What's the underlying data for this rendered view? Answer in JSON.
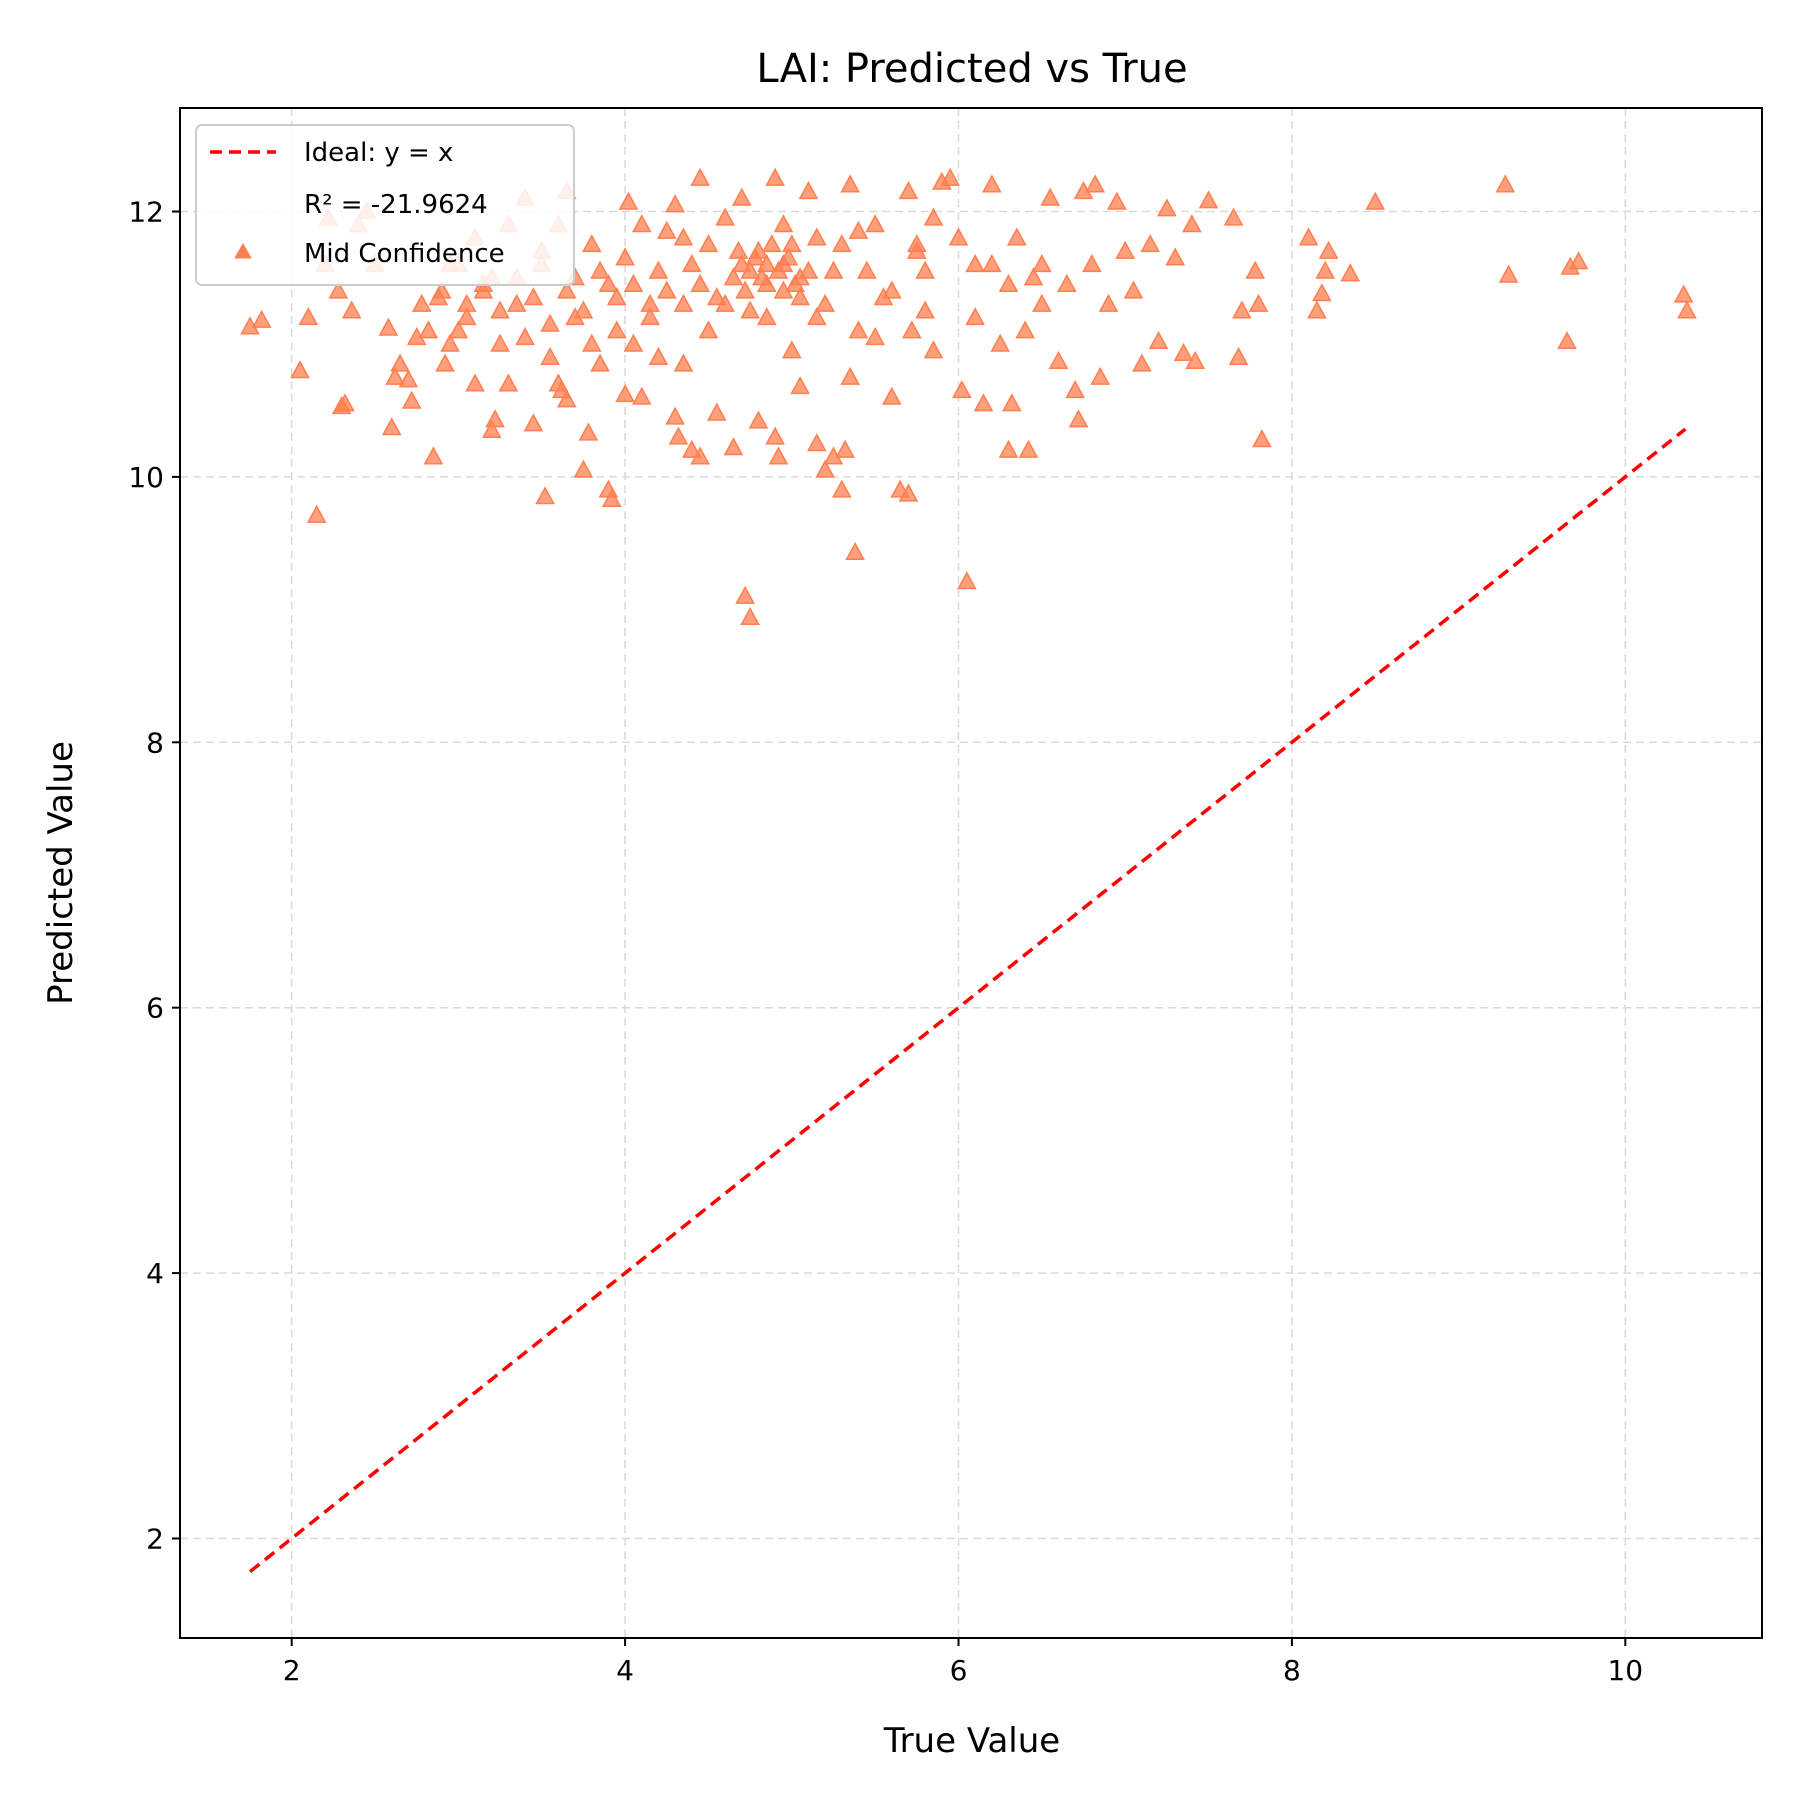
{
  "chart_data": {
    "type": "scatter",
    "title": "LAI: Predicted vs True",
    "xlabel": "True Value",
    "ylabel": "Predicted Value",
    "xlim": [
      1.33,
      10.82
    ],
    "ylim": [
      1.25,
      12.78
    ],
    "x_ticks": [
      2,
      4,
      6,
      8,
      10
    ],
    "y_ticks": [
      2,
      4,
      6,
      8,
      10,
      12
    ],
    "x_tick_labels": [
      "2",
      "4",
      "6",
      "8",
      "10"
    ],
    "y_tick_labels": [
      "2",
      "4",
      "6",
      "8",
      "10",
      "12"
    ],
    "grid": true,
    "legend_position": "top-left",
    "colors": {
      "ideal_line": "#ff0000",
      "points": "#ff7f50",
      "grid": "#d9d9d9"
    },
    "ideal_line": {
      "label": "Ideal: y = x",
      "x": [
        1.75,
        10.36
      ],
      "y": [
        1.75,
        10.36
      ]
    },
    "r2_label": "R² = -21.9624",
    "series": [
      {
        "name": "Mid Confidence",
        "marker": "triangle",
        "points": [
          [
            1.75,
            11.13
          ],
          [
            1.82,
            11.18
          ],
          [
            2.05,
            10.8
          ],
          [
            2.1,
            11.2
          ],
          [
            2.15,
            9.71
          ],
          [
            2.3,
            10.53
          ],
          [
            2.32,
            10.55
          ],
          [
            2.28,
            11.4
          ],
          [
            2.36,
            11.25
          ],
          [
            2.4,
            11.9
          ],
          [
            2.45,
            12.0
          ],
          [
            2.5,
            11.6
          ],
          [
            2.2,
            11.6
          ],
          [
            2.22,
            11.95
          ],
          [
            2.58,
            11.12
          ],
          [
            2.6,
            10.37
          ],
          [
            2.62,
            10.75
          ],
          [
            2.65,
            10.85
          ],
          [
            2.7,
            10.73
          ],
          [
            2.72,
            10.57
          ],
          [
            2.75,
            11.05
          ],
          [
            2.78,
            11.3
          ],
          [
            2.82,
            11.1
          ],
          [
            2.85,
            10.15
          ],
          [
            2.88,
            11.35
          ],
          [
            2.92,
            10.85
          ],
          [
            2.95,
            11.0
          ],
          [
            3.0,
            11.1
          ],
          [
            3.05,
            11.2
          ],
          [
            3.1,
            10.7
          ],
          [
            3.15,
            11.4
          ],
          [
            3.2,
            10.35
          ],
          [
            3.22,
            10.43
          ],
          [
            3.25,
            11.0
          ],
          [
            3.3,
            10.7
          ],
          [
            3.35,
            11.3
          ],
          [
            3.4,
            11.05
          ],
          [
            3.45,
            10.4
          ],
          [
            3.5,
            11.6
          ],
          [
            3.52,
            9.85
          ],
          [
            3.55,
            10.9
          ],
          [
            3.6,
            10.7
          ],
          [
            3.62,
            10.65
          ],
          [
            3.65,
            10.58
          ],
          [
            3.7,
            11.2
          ],
          [
            3.75,
            10.05
          ],
          [
            3.78,
            10.33
          ],
          [
            3.8,
            11.0
          ],
          [
            3.85,
            10.85
          ],
          [
            3.9,
            9.9
          ],
          [
            3.92,
            9.83
          ],
          [
            3.95,
            11.1
          ],
          [
            4.0,
            10.62
          ],
          [
            4.02,
            12.07
          ],
          [
            4.05,
            11.0
          ],
          [
            4.1,
            10.6
          ],
          [
            4.15,
            11.3
          ],
          [
            4.2,
            10.9
          ],
          [
            4.25,
            11.85
          ],
          [
            4.3,
            10.45
          ],
          [
            4.32,
            10.3
          ],
          [
            4.35,
            10.85
          ],
          [
            4.4,
            10.2
          ],
          [
            4.45,
            10.15
          ],
          [
            4.5,
            11.1
          ],
          [
            4.55,
            10.48
          ],
          [
            4.6,
            11.3
          ],
          [
            4.65,
            10.22
          ],
          [
            4.7,
            11.6
          ],
          [
            4.72,
            9.1
          ],
          [
            4.75,
            8.94
          ],
          [
            4.8,
            10.42
          ],
          [
            4.85,
            11.2
          ],
          [
            4.9,
            10.3
          ],
          [
            4.92,
            10.15
          ],
          [
            4.95,
            11.9
          ],
          [
            5.0,
            10.95
          ],
          [
            5.05,
            10.68
          ],
          [
            5.1,
            11.55
          ],
          [
            5.15,
            10.25
          ],
          [
            5.2,
            10.05
          ],
          [
            5.25,
            10.15
          ],
          [
            5.3,
            9.9
          ],
          [
            5.32,
            10.2
          ],
          [
            5.35,
            10.75
          ],
          [
            5.38,
            9.43
          ],
          [
            5.4,
            11.1
          ],
          [
            5.45,
            11.55
          ],
          [
            5.5,
            11.05
          ],
          [
            5.55,
            11.35
          ],
          [
            5.6,
            10.6
          ],
          [
            5.65,
            9.9
          ],
          [
            5.7,
            9.87
          ],
          [
            5.72,
            11.1
          ],
          [
            5.75,
            11.7
          ],
          [
            5.8,
            11.25
          ],
          [
            5.85,
            10.95
          ],
          [
            5.9,
            12.22
          ],
          [
            5.95,
            12.25
          ],
          [
            6.0,
            11.8
          ],
          [
            6.02,
            10.65
          ],
          [
            6.05,
            9.21
          ],
          [
            6.1,
            11.2
          ],
          [
            6.15,
            10.55
          ],
          [
            6.2,
            11.6
          ],
          [
            6.25,
            11.0
          ],
          [
            6.3,
            10.2
          ],
          [
            6.32,
            10.55
          ],
          [
            6.35,
            11.8
          ],
          [
            6.4,
            11.1
          ],
          [
            6.42,
            10.2
          ],
          [
            6.45,
            11.5
          ],
          [
            6.5,
            11.6
          ],
          [
            6.55,
            12.1
          ],
          [
            6.6,
            10.87
          ],
          [
            6.65,
            11.45
          ],
          [
            6.7,
            10.65
          ],
          [
            6.72,
            10.43
          ],
          [
            6.75,
            12.15
          ],
          [
            6.8,
            11.6
          ],
          [
            6.82,
            12.2
          ],
          [
            6.85,
            10.75
          ],
          [
            6.9,
            11.3
          ],
          [
            6.95,
            12.07
          ],
          [
            7.0,
            11.7
          ],
          [
            7.05,
            11.4
          ],
          [
            7.1,
            10.85
          ],
          [
            7.15,
            11.75
          ],
          [
            7.2,
            11.02
          ],
          [
            7.25,
            12.02
          ],
          [
            7.3,
            11.65
          ],
          [
            7.35,
            10.93
          ],
          [
            7.4,
            11.9
          ],
          [
            7.42,
            10.87
          ],
          [
            7.5,
            12.08
          ],
          [
            7.65,
            11.95
          ],
          [
            7.68,
            10.9
          ],
          [
            7.7,
            11.25
          ],
          [
            7.78,
            11.55
          ],
          [
            7.8,
            11.3
          ],
          [
            7.82,
            10.28
          ],
          [
            8.1,
            11.8
          ],
          [
            8.15,
            11.25
          ],
          [
            8.18,
            11.38
          ],
          [
            8.2,
            11.55
          ],
          [
            8.22,
            11.7
          ],
          [
            8.35,
            11.53
          ],
          [
            8.5,
            12.07
          ],
          [
            9.28,
            12.2
          ],
          [
            9.3,
            11.52
          ],
          [
            9.65,
            11.02
          ],
          [
            9.67,
            11.58
          ],
          [
            9.72,
            11.62
          ],
          [
            10.35,
            11.37
          ],
          [
            10.37,
            11.25
          ],
          [
            3.0,
            11.6
          ],
          [
            3.1,
            11.8
          ],
          [
            3.2,
            11.5
          ],
          [
            3.3,
            11.9
          ],
          [
            3.4,
            12.1
          ],
          [
            3.5,
            11.7
          ],
          [
            3.6,
            11.9
          ],
          [
            3.65,
            12.15
          ],
          [
            3.7,
            11.5
          ],
          [
            3.8,
            11.75
          ],
          [
            3.9,
            11.45
          ],
          [
            4.0,
            11.65
          ],
          [
            4.1,
            11.9
          ],
          [
            4.2,
            11.55
          ],
          [
            4.3,
            12.05
          ],
          [
            4.35,
            11.8
          ],
          [
            4.4,
            11.6
          ],
          [
            4.45,
            12.25
          ],
          [
            4.5,
            11.75
          ],
          [
            4.6,
            11.95
          ],
          [
            4.7,
            12.1
          ],
          [
            4.75,
            11.55
          ],
          [
            4.8,
            11.7
          ],
          [
            4.85,
            11.45
          ],
          [
            4.9,
            12.25
          ],
          [
            4.95,
            11.6
          ],
          [
            5.0,
            11.75
          ],
          [
            5.05,
            11.35
          ],
          [
            5.1,
            12.15
          ],
          [
            5.15,
            11.8
          ],
          [
            5.2,
            11.3
          ],
          [
            5.25,
            11.55
          ],
          [
            5.3,
            11.75
          ],
          [
            5.35,
            12.2
          ],
          [
            5.4,
            11.85
          ],
          [
            5.5,
            11.9
          ],
          [
            5.6,
            11.4
          ],
          [
            5.7,
            12.15
          ],
          [
            5.75,
            11.75
          ],
          [
            5.8,
            11.55
          ],
          [
            5.85,
            11.95
          ],
          [
            6.1,
            11.6
          ],
          [
            6.2,
            12.2
          ],
          [
            6.3,
            11.45
          ],
          [
            6.5,
            11.3
          ],
          [
            2.9,
            11.4
          ],
          [
            2.95,
            11.6
          ],
          [
            3.05,
            11.3
          ],
          [
            3.15,
            11.45
          ],
          [
            3.25,
            11.25
          ],
          [
            3.35,
            11.5
          ],
          [
            3.45,
            11.35
          ],
          [
            3.55,
            11.15
          ],
          [
            3.65,
            11.4
          ],
          [
            3.75,
            11.25
          ],
          [
            3.85,
            11.55
          ],
          [
            3.95,
            11.35
          ],
          [
            4.05,
            11.45
          ],
          [
            4.15,
            11.2
          ],
          [
            4.25,
            11.4
          ],
          [
            4.35,
            11.3
          ],
          [
            4.45,
            11.45
          ],
          [
            4.55,
            11.35
          ],
          [
            4.65,
            11.5
          ],
          [
            4.75,
            11.25
          ],
          [
            4.85,
            11.6
          ],
          [
            4.95,
            11.4
          ],
          [
            5.05,
            11.5
          ],
          [
            5.15,
            11.2
          ],
          [
            4.78,
            11.65
          ],
          [
            4.82,
            11.5
          ],
          [
            4.88,
            11.75
          ],
          [
            4.92,
            11.55
          ],
          [
            4.98,
            11.65
          ],
          [
            5.02,
            11.45
          ],
          [
            4.72,
            11.4
          ],
          [
            4.68,
            11.7
          ]
        ]
      }
    ]
  }
}
